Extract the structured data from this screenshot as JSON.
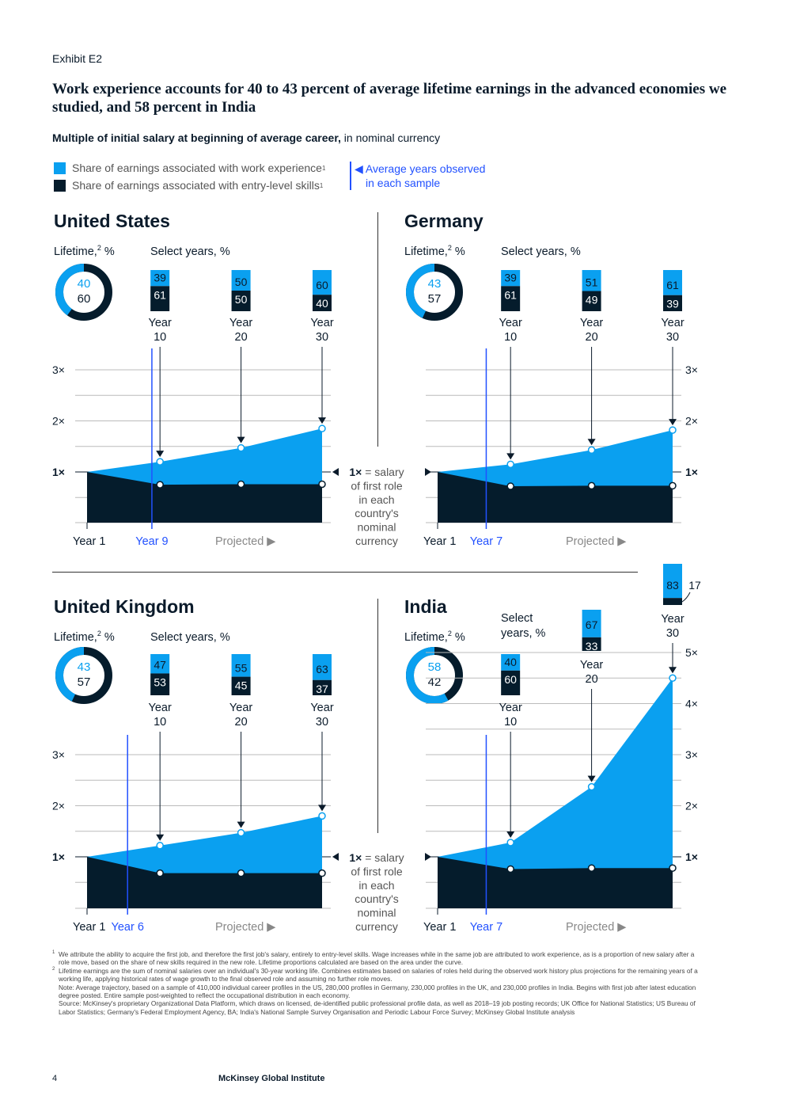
{
  "exhibit": "Exhibit E2",
  "title": "Work experience accounts for 40 to 43 percent of average lifetime earnings in the advanced economies we studied, and 58 percent in India",
  "subtitle_bold": "Multiple of initial salary at beginning of average career,",
  "subtitle_rest": " in nominal currency",
  "legend": {
    "work": "Share of earnings associated with work experience",
    "entry": "Share of earnings associated with entry-level skills",
    "sup": "1",
    "avg_line1": "Average years observed",
    "avg_line2": "in each sample"
  },
  "colors": {
    "work": "#0aa0f0",
    "entry": "#051c2c",
    "observed": "#2251ff",
    "grid": "#bbbbbb"
  },
  "labels": {
    "lifetime": "Lifetime,",
    "lifetime_sup": "2",
    "lifetime_unit": " %",
    "select_years": "Select years, %",
    "select_years_l1": "Select",
    "select_years_l2": "years, %",
    "year": "Year",
    "year1": "Year 1",
    "projected": "Projected ▶",
    "note_bold": "1×",
    "note_lines": [
      "= salary",
      "of first role",
      "in each",
      "country's",
      "nominal",
      "currency"
    ]
  },
  "chart_data": [
    {
      "type": "area",
      "name": "United States",
      "lifetime": {
        "work": 40,
        "entry": 60
      },
      "observed_label": "Year 9",
      "observed_year": 9,
      "years": [
        1,
        10,
        20,
        30
      ],
      "total": [
        1.0,
        1.2,
        1.47,
        1.85
      ],
      "entry": [
        1.0,
        0.75,
        0.76,
        0.76
      ],
      "select": [
        {
          "year": 10,
          "work": 39,
          "entry": 61
        },
        {
          "year": 20,
          "work": 50,
          "entry": 50
        },
        {
          "year": 30,
          "work": 60,
          "entry": 40
        }
      ],
      "yticks": [
        "1×",
        "2×",
        "3×"
      ],
      "ymax": 3
    },
    {
      "type": "area",
      "name": "Germany",
      "lifetime": {
        "work": 43,
        "entry": 57
      },
      "observed_label": "Year 7",
      "observed_year": 7,
      "years": [
        1,
        10,
        20,
        30
      ],
      "total": [
        1.0,
        1.15,
        1.43,
        1.82
      ],
      "entry": [
        1.0,
        0.72,
        0.73,
        0.73
      ],
      "select": [
        {
          "year": 10,
          "work": 39,
          "entry": 61
        },
        {
          "year": 20,
          "work": 51,
          "entry": 49
        },
        {
          "year": 30,
          "work": 61,
          "entry": 39
        }
      ],
      "yticks": [
        "1×",
        "2×",
        "3×"
      ],
      "ymax": 3
    },
    {
      "type": "area",
      "name": "United Kingdom",
      "lifetime": {
        "work": 43,
        "entry": 57
      },
      "observed_label": "Year 6",
      "observed_year": 6,
      "years": [
        1,
        10,
        20,
        30
      ],
      "total": [
        1.0,
        1.22,
        1.47,
        1.8
      ],
      "entry": [
        1.0,
        0.68,
        0.68,
        0.68
      ],
      "select": [
        {
          "year": 10,
          "work": 47,
          "entry": 53
        },
        {
          "year": 20,
          "work": 55,
          "entry": 45
        },
        {
          "year": 30,
          "work": 63,
          "entry": 37
        }
      ],
      "yticks": [
        "1×",
        "2×",
        "3×"
      ],
      "ymax": 3
    },
    {
      "type": "area",
      "name": "India",
      "lifetime": {
        "work": 58,
        "entry": 42
      },
      "observed_label": "Year 7",
      "observed_year": 7,
      "years": [
        1,
        10,
        20,
        30
      ],
      "total": [
        1.0,
        1.28,
        2.37,
        4.5
      ],
      "entry": [
        1.0,
        0.76,
        0.78,
        0.78
      ],
      "select": [
        {
          "year": 10,
          "work": 40,
          "entry": 60
        },
        {
          "year": 20,
          "work": 67,
          "entry": 33
        },
        {
          "year": 30,
          "work": 83,
          "entry": 17
        }
      ],
      "yticks": [
        "1×",
        "2×",
        "3×",
        "4×",
        "5×"
      ],
      "ymax": 5
    }
  ],
  "footnotes": [
    {
      "sup": "1",
      "text": "We attribute the ability to acquire the first job, and therefore the first job's salary, entirely to entry-level skills. Wage increases while in the same job are attributed to work experience, as is a proportion of new salary after a role move, based on the share of new skills required in the new role. Lifetime proportions calculated are based on the area under the curve."
    },
    {
      "sup": "2",
      "text": "Lifetime earnings are the sum of nominal salaries over an individual's 30-year working life. Combines estimates based on salaries of roles held during the observed work history plus projections for the remaining years of a working life, applying historical rates of wage growth to the final observed role and assuming no further role moves."
    }
  ],
  "note": "Note: Average trajectory, based on a sample of 410,000 individual career profiles in the US, 280,000 profiles in Germany, 230,000 profiles in the UK, and 230,000 profiles in India. Begins with first job after latest education degree posted. Entire sample post-weighted to reflect the occupational distribution in each economy.",
  "source": "Source: McKinsey's proprietary Organizational Data Platform, which draws on licensed, de-identified public professional profile data, as well as 2018–19 job posting records; UK Office for National Statistics; US Bureau of Labor Statistics; Germany's Federal Employment Agency, BA; India's National Sample Survey Organisation and Periodic Labour Force Survey; McKinsey Global Institute analysis",
  "page_number": "4",
  "publisher": "McKinsey Global Institute"
}
